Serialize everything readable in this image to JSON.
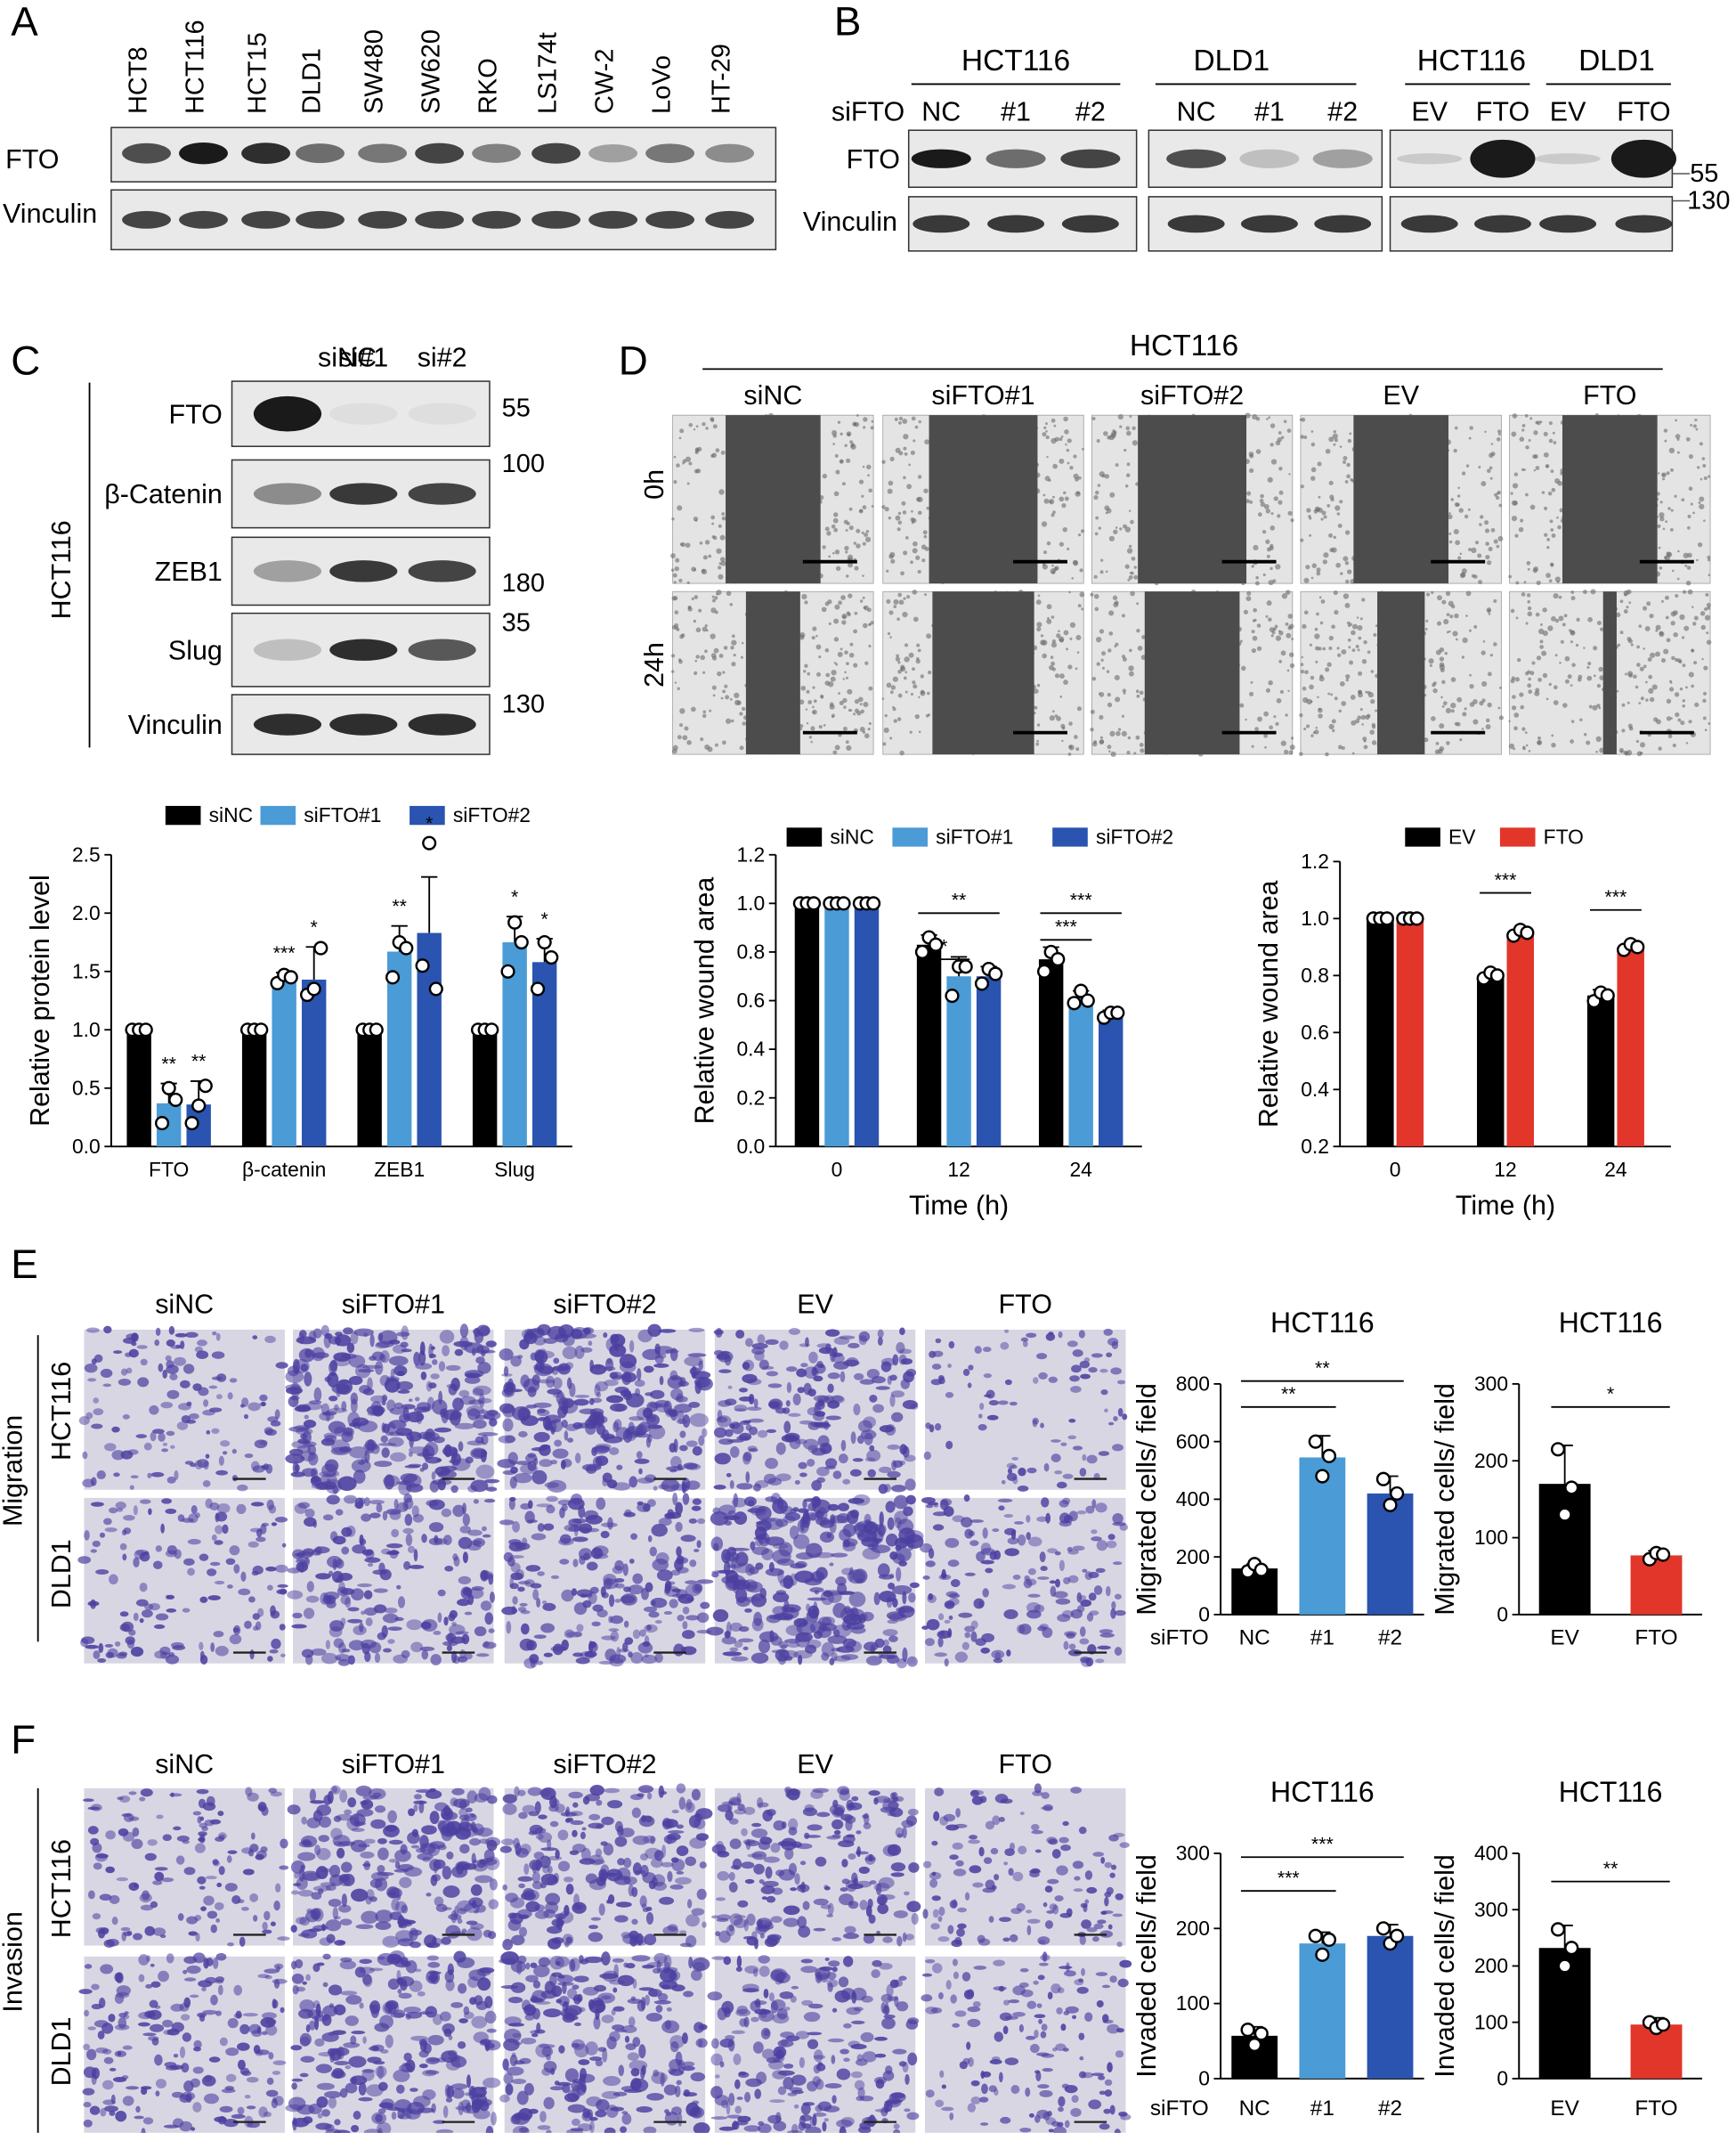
{
  "panels": {
    "a": "A",
    "b": "B",
    "c": "C",
    "d": "D",
    "e": "E",
    "f": "F"
  },
  "panelA": {
    "lanes": [
      "HCT8",
      "HCT116",
      "HCT15",
      "DLD1",
      "SW480",
      "SW620",
      "RKO",
      "LS174t",
      "CW-2",
      "LoVo",
      "HT-29"
    ],
    "rows": [
      "FTO",
      "Vinculin"
    ]
  },
  "panelB": {
    "groups": [
      "HCT116",
      "DLD1",
      "HCT116",
      "DLD1"
    ],
    "si_label": "siFTO",
    "lanes_si": [
      "NC",
      "#1",
      "#2",
      "NC",
      "#1",
      "#2"
    ],
    "lanes_ov": [
      "EV",
      "FTO",
      "EV",
      "FTO"
    ],
    "rows": [
      "FTO",
      "Vinculin"
    ],
    "mw": [
      "55",
      "130"
    ]
  },
  "panelC": {
    "lanes": [
      "siNC",
      "si#1",
      "si#2"
    ],
    "cell": "HCT116",
    "rows": [
      "FTO",
      "β-Catenin",
      "ZEB1",
      "Slug",
      "Vinculin"
    ],
    "mw": [
      "55",
      "100",
      "180",
      "35",
      "130"
    ]
  },
  "panelD": {
    "cell": "HCT116",
    "conditions": [
      "siNC",
      "siFTO#1",
      "siFTO#2",
      "EV",
      "FTO"
    ],
    "times": [
      "0h",
      "24h"
    ]
  },
  "panelE": {
    "conditions": [
      "siNC",
      "siFTO#1",
      "siFTO#2",
      "EV",
      "FTO"
    ],
    "assay": "Migration",
    "cells": [
      "HCT116",
      "DLD1"
    ]
  },
  "panelF": {
    "conditions": [
      "siNC",
      "siFTO#1",
      "siFTO#2",
      "EV",
      "FTO"
    ],
    "assay": "Invasion",
    "cells": [
      "HCT116",
      "DLD1"
    ]
  },
  "colors": {
    "black": "#000000",
    "light_blue": "#4a9bd6",
    "dark_blue": "#2a54b0",
    "red": "#e2362a",
    "blot_bg": "#e9e9e9",
    "band": "#1a1a1a",
    "stain": "#4b3fa0",
    "field_bg": "#d8d6e3",
    "wound_bg": "#4c4c4c"
  },
  "chart_data": [
    {
      "id": "c_protein",
      "type": "bar",
      "categories": [
        "FTO",
        "β-catenin",
        "ZEB1",
        "Slug"
      ],
      "series": [
        {
          "name": "siNC",
          "color": "#000000",
          "values": [
            1.0,
            1.0,
            1.0,
            1.0
          ],
          "err": [
            0,
            0,
            0,
            0
          ],
          "points": [
            [
              1,
              1,
              1
            ],
            [
              1,
              1,
              1
            ],
            [
              1,
              1,
              1
            ],
            [
              1,
              1,
              1
            ]
          ]
        },
        {
          "name": "siFTO#1",
          "color": "#4a9bd6",
          "values": [
            0.37,
            1.44,
            1.67,
            1.75
          ],
          "err": [
            0.17,
            0.05,
            0.22,
            0.22
          ],
          "points": [
            [
              0.2,
              0.5,
              0.4
            ],
            [
              1.4,
              1.47,
              1.45
            ],
            [
              1.45,
              1.75,
              1.7
            ],
            [
              1.5,
              1.92,
              1.75
            ]
          ]
        },
        {
          "name": "siFTO#2",
          "color": "#2a54b0",
          "values": [
            0.36,
            1.43,
            1.83,
            1.58
          ],
          "err": [
            0.2,
            0.28,
            0.48,
            0.2
          ],
          "points": [
            [
              0.2,
              0.35,
              0.52
            ],
            [
              1.3,
              1.35,
              1.7
            ],
            [
              1.55,
              2.6,
              1.35
            ],
            [
              1.35,
              1.75,
              1.62
            ]
          ]
        }
      ],
      "stars": [
        [
          "",
          "**",
          "**"
        ],
        [
          "",
          "***",
          "*"
        ],
        [
          "",
          "**",
          "*"
        ],
        [
          "",
          "*",
          "*"
        ]
      ],
      "ylabel": "Relative  protein level",
      "ylim": [
        0,
        2.5
      ],
      "yticks": [
        "0.0",
        "0.5",
        "1.0",
        "1.5",
        "2.0",
        "2.5"
      ]
    },
    {
      "id": "d_wound_si",
      "type": "bar",
      "categories": [
        "0",
        "12",
        "24"
      ],
      "series": [
        {
          "name": "siNC",
          "color": "#000000",
          "values": [
            1.0,
            0.83,
            0.77
          ],
          "err": [
            0,
            0.04,
            0.05
          ],
          "points": [
            [
              1,
              1,
              1
            ],
            [
              0.8,
              0.86,
              0.83
            ],
            [
              0.72,
              0.8,
              0.77
            ]
          ]
        },
        {
          "name": "siFTO#1",
          "color": "#4a9bd6",
          "values": [
            1.0,
            0.7,
            0.61
          ],
          "err": [
            0,
            0.08,
            0.03
          ],
          "points": [
            [
              1,
              1,
              1
            ],
            [
              0.62,
              0.74,
              0.74
            ],
            [
              0.59,
              0.64,
              0.6
            ]
          ]
        },
        {
          "name": "siFTO#2",
          "color": "#2a54b0",
          "values": [
            1.0,
            0.7,
            0.54
          ],
          "err": [
            0,
            0.04,
            0.02
          ],
          "points": [
            [
              1,
              1,
              1
            ],
            [
              0.67,
              0.73,
              0.71
            ],
            [
              0.53,
              0.55,
              0.55
            ]
          ]
        }
      ],
      "brackets": [
        {
          "cat": 1,
          "from": 0,
          "to": 1,
          "level": 0.77,
          "label": "*"
        },
        {
          "cat": 1,
          "from": 0,
          "to": 2,
          "level": 0.96,
          "label": "**"
        },
        {
          "cat": 2,
          "from": 0,
          "to": 1,
          "level": 0.85,
          "label": "***"
        },
        {
          "cat": 2,
          "from": 0,
          "to": 2,
          "level": 0.96,
          "label": "***"
        }
      ],
      "xlabel": "Time (h)",
      "ylabel": "Relative wound area",
      "ylim": [
        0,
        1.2
      ],
      "yticks": [
        "0.0",
        "0.2",
        "0.4",
        "0.6",
        "0.8",
        "1.0",
        "1.2"
      ]
    },
    {
      "id": "d_wound_ov",
      "type": "bar",
      "categories": [
        "0",
        "12",
        "24"
      ],
      "series": [
        {
          "name": "EV",
          "color": "#000000",
          "values": [
            1.0,
            0.8,
            0.73
          ],
          "err": [
            0,
            0.01,
            0.02
          ],
          "points": [
            [
              1,
              1,
              1
            ],
            [
              0.79,
              0.81,
              0.8
            ],
            [
              0.71,
              0.74,
              0.73
            ]
          ]
        },
        {
          "name": "FTO",
          "color": "#e2362a",
          "values": [
            1.0,
            0.95,
            0.9
          ],
          "err": [
            0,
            0.01,
            0.01
          ],
          "points": [
            [
              1,
              1,
              1
            ],
            [
              0.94,
              0.96,
              0.95
            ],
            [
              0.89,
              0.91,
              0.9
            ]
          ]
        }
      ],
      "brackets": [
        {
          "cat": 1,
          "from": 0,
          "to": 1,
          "level": 1.09,
          "label": "***"
        },
        {
          "cat": 2,
          "from": 0,
          "to": 1,
          "level": 1.03,
          "label": "***"
        }
      ],
      "xlabel": "Time (h)",
      "ylabel": "Relative wound area",
      "ylim": [
        0.2,
        1.2
      ],
      "yticks": [
        "0.2",
        "0.4",
        "0.6",
        "0.8",
        "1.0",
        "1.2"
      ]
    },
    {
      "id": "e_mig_si",
      "type": "bar",
      "title": "HCT116",
      "xprefix": "siFTO",
      "categories": [
        "NC",
        "#1",
        "#2"
      ],
      "colors": [
        "#000000",
        "#4a9bd6",
        "#2a54b0"
      ],
      "values": [
        160,
        545,
        420
      ],
      "err": [
        15,
        75,
        60
      ],
      "points": [
        [
          150,
          175,
          155
        ],
        [
          600,
          480,
          550
        ],
        [
          470,
          380,
          420
        ]
      ],
      "brackets": [
        {
          "from": 0,
          "to": 1,
          "level": 720,
          "label": "**"
        },
        {
          "from": 0,
          "to": 2,
          "level": 810,
          "label": "**"
        }
      ],
      "ylabel": "Migrated cells/ field",
      "ylim": [
        0,
        800
      ],
      "yticks": [
        "0",
        "200",
        "400",
        "600",
        "800"
      ]
    },
    {
      "id": "e_mig_ov",
      "type": "bar",
      "title": "HCT116",
      "categories": [
        "EV",
        "FTO"
      ],
      "colors": [
        "#000000",
        "#e2362a"
      ],
      "values": [
        170,
        77
      ],
      "err": [
        50,
        6
      ],
      "points": [
        [
          215,
          130,
          165
        ],
        [
          72,
          80,
          78
        ]
      ],
      "brackets": [
        {
          "from": 0,
          "to": 1,
          "level": 270,
          "label": "*"
        }
      ],
      "ylabel": "Migrated cells/ field",
      "ylim": [
        0,
        300
      ],
      "yticks": [
        "0",
        "100",
        "200",
        "300"
      ]
    },
    {
      "id": "f_inv_si",
      "type": "bar",
      "title": "HCT116",
      "xprefix": "siFTO",
      "categories": [
        "NC",
        "#1",
        "#2"
      ],
      "colors": [
        "#000000",
        "#4a9bd6",
        "#2a54b0"
      ],
      "values": [
        57,
        180,
        190
      ],
      "err": [
        12,
        15,
        15
      ],
      "points": [
        [
          65,
          45,
          60
        ],
        [
          190,
          165,
          185
        ],
        [
          200,
          180,
          190
        ]
      ],
      "brackets": [
        {
          "from": 0,
          "to": 1,
          "level": 250,
          "label": "***"
        },
        {
          "from": 0,
          "to": 2,
          "level": 295,
          "label": "***"
        }
      ],
      "ylabel": "Invaded cells/ field",
      "ylim": [
        0,
        300
      ],
      "yticks": [
        "0",
        "100",
        "200",
        "300"
      ]
    },
    {
      "id": "f_inv_ov",
      "type": "bar",
      "title": "HCT116",
      "categories": [
        "EV",
        "FTO"
      ],
      "colors": [
        "#000000",
        "#e2362a"
      ],
      "values": [
        232,
        96
      ],
      "err": [
        40,
        12
      ],
      "points": [
        [
          265,
          200,
          232
        ],
        [
          100,
          90,
          96
        ]
      ],
      "brackets": [
        {
          "from": 0,
          "to": 1,
          "level": 350,
          "label": "**"
        }
      ],
      "ylabel": "Invaded cells/ field",
      "ylim": [
        0,
        400
      ],
      "yticks": [
        "0",
        "100",
        "200",
        "300",
        "400"
      ]
    }
  ]
}
